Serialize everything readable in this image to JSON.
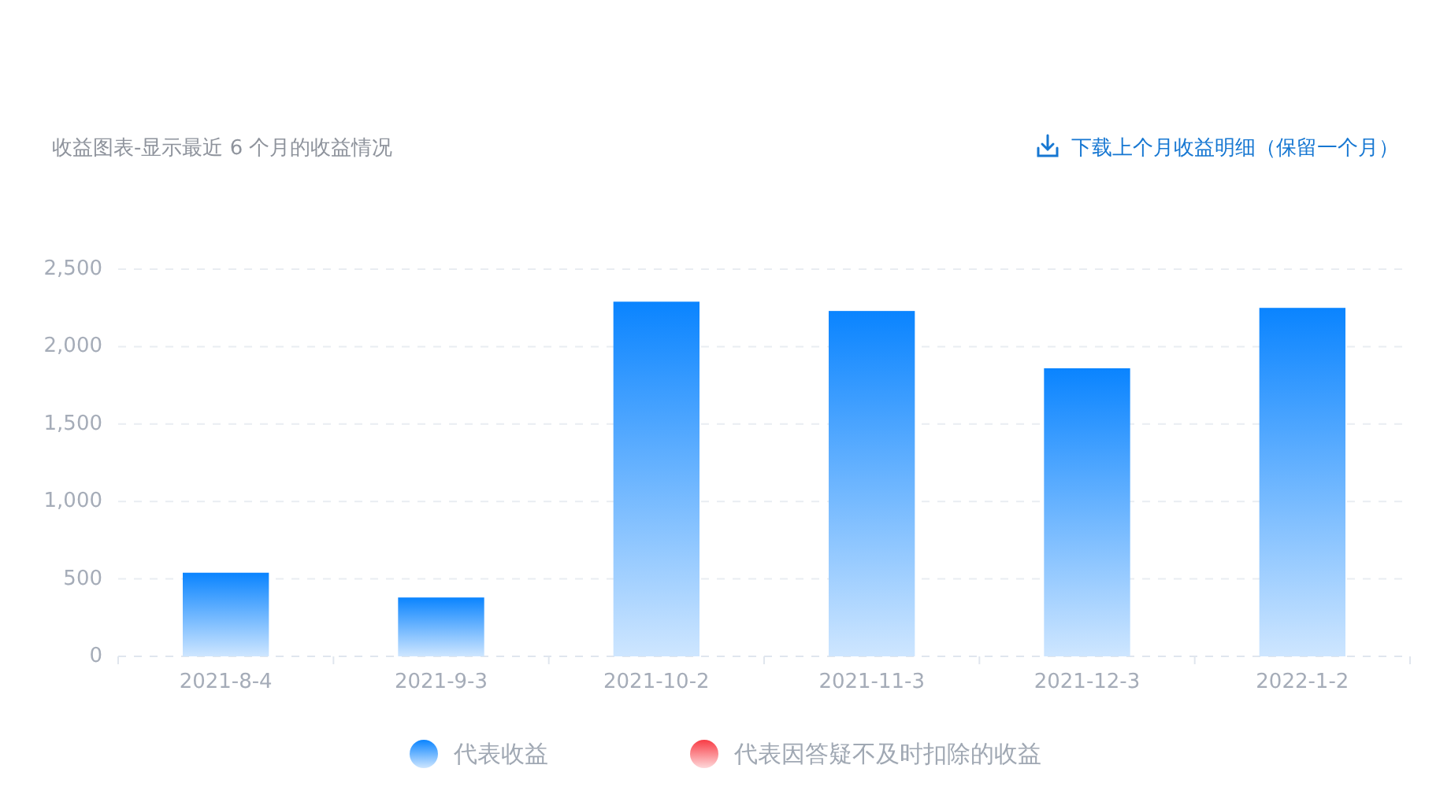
{
  "chart_data": {
    "type": "bar",
    "title": "收益图表-显示最近 6 个月的收益情况",
    "annotations": [
      "下载上个月收益明细（保留一个月）"
    ],
    "categories": [
      "2021-8-4",
      "2021-9-3",
      "2021-10-2",
      "2021-11-3",
      "2021-12-3",
      "2022-1-2"
    ],
    "series": [
      {
        "name": "代表收益",
        "color": "#0a84ff",
        "values": [
          540,
          380,
          2290,
          2230,
          1860,
          2250
        ]
      },
      {
        "name": "代表因答疑不及时扣除的收益",
        "color": "#f83c45",
        "values": [
          null,
          null,
          null,
          null,
          null,
          null
        ]
      }
    ],
    "stacked": true,
    "ylim": [
      0,
      2500
    ],
    "yticks": [
      0,
      500,
      {
        "value": 1000,
        "label": "1,000"
      },
      {
        "value": 1500,
        "label": "1,500"
      },
      {
        "value": 2000,
        "label": "2,000"
      },
      {
        "value": 2500,
        "label": "2,500"
      }
    ],
    "grid": "y",
    "legend": "bottom"
  }
}
